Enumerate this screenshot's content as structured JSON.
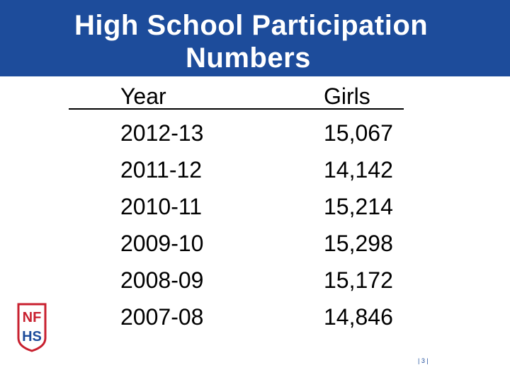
{
  "header": {
    "title_lines": [
      "High School Participation",
      "Numbers"
    ]
  },
  "table": {
    "columns": [
      "Year",
      "Girls"
    ],
    "rows": [
      [
        "2012-13",
        "15,067"
      ],
      [
        "2011-12",
        "14,142"
      ],
      [
        "2010-11",
        "15,214"
      ],
      [
        "2009-10",
        "15,298"
      ],
      [
        "2008-09",
        "15,172"
      ],
      [
        "2007-08",
        "14,846"
      ]
    ]
  },
  "logo": {
    "top": "NF",
    "bottom": "HS"
  },
  "footer": {
    "page": "| 3 |"
  }
}
